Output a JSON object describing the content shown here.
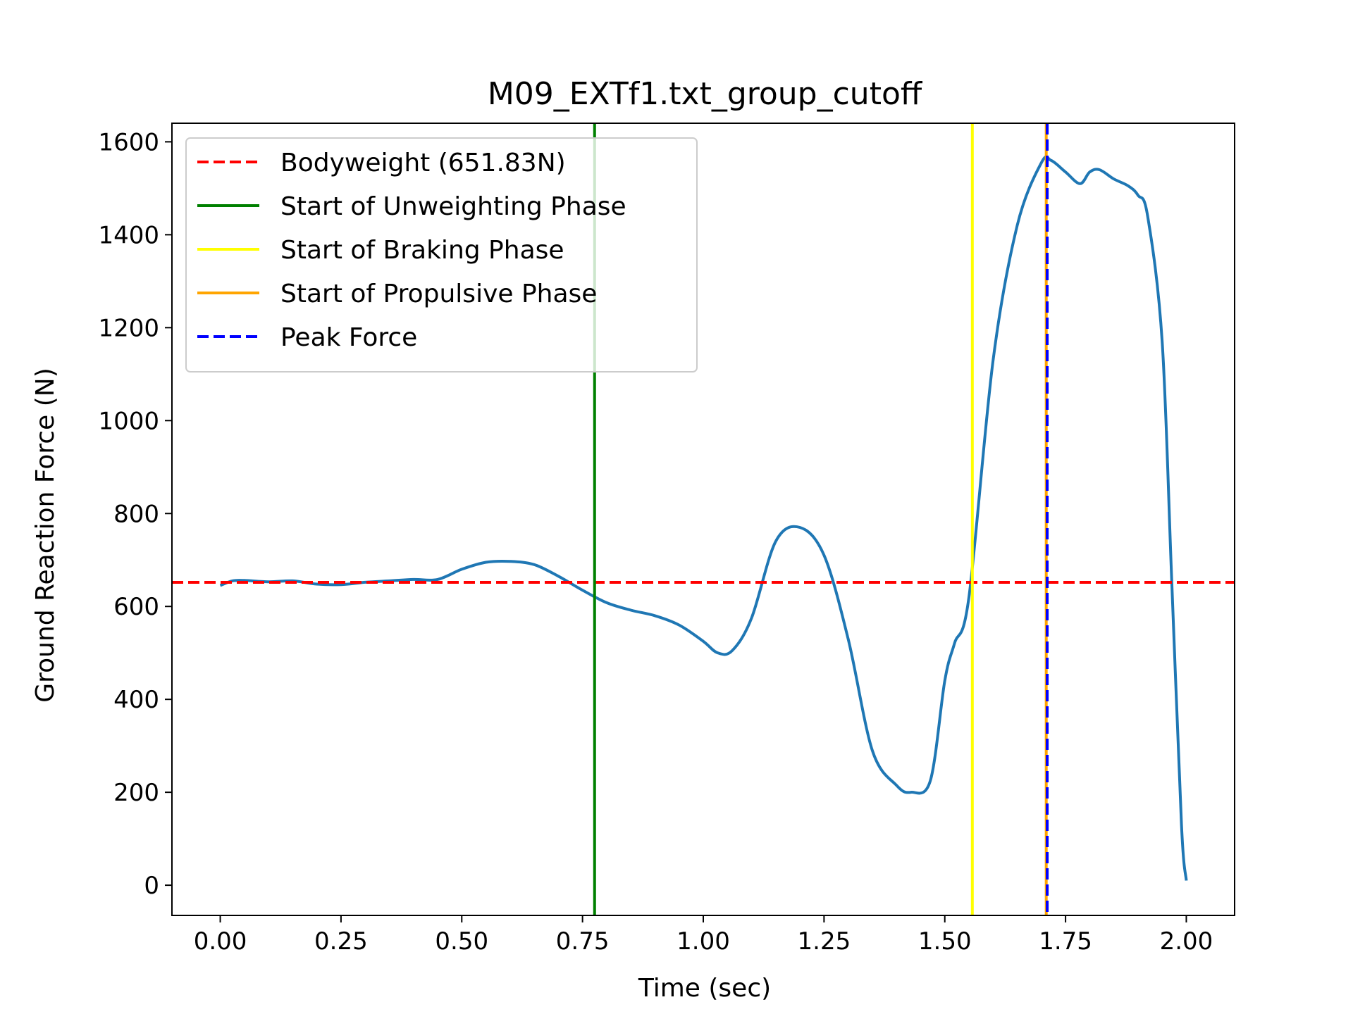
{
  "chart_data": {
    "type": "line",
    "title": "M09_EXTf1.txt_group_cutoff",
    "xlabel": "Time (sec)",
    "ylabel": "Ground Reaction Force (N)",
    "xlim": [
      -0.1,
      2.1
    ],
    "ylim": [
      -65,
      1640
    ],
    "xticks": [
      0.0,
      0.25,
      0.5,
      0.75,
      1.0,
      1.25,
      1.5,
      1.75,
      2.0
    ],
    "xtick_labels": [
      "0.00",
      "0.25",
      "0.50",
      "0.75",
      "1.00",
      "1.25",
      "1.50",
      "1.75",
      "2.00"
    ],
    "yticks": [
      0,
      200,
      400,
      600,
      800,
      1000,
      1200,
      1400,
      1600
    ],
    "ytick_labels": [
      "0",
      "200",
      "400",
      "600",
      "800",
      "1000",
      "1200",
      "1400",
      "1600"
    ],
    "grid": false,
    "legend_position": "top-left",
    "legend": [
      {
        "label": "Bodyweight (651.83N)",
        "color": "#ff0000",
        "style": "dashed"
      },
      {
        "label": "Start of Unweighting Phase",
        "color": "#008000",
        "style": "solid"
      },
      {
        "label": "Start of Braking Phase",
        "color": "#ffff00",
        "style": "solid"
      },
      {
        "label": "Start of Propulsive Phase",
        "color": "#ffa500",
        "style": "solid"
      },
      {
        "label": "Peak Force",
        "color": "#0000ff",
        "style": "dashed"
      }
    ],
    "bodyweight": 651.83,
    "phase_markers": {
      "unweighting_start": 0.775,
      "braking_start": 1.557,
      "propulsive_start": 1.71,
      "peak_force": 1.712
    },
    "series": [
      {
        "color": "#1f77b4",
        "x": [
          0.0,
          0.025,
          0.05,
          0.1,
          0.15,
          0.2,
          0.25,
          0.3,
          0.35,
          0.4,
          0.45,
          0.5,
          0.55,
          0.6,
          0.65,
          0.7,
          0.75,
          0.8,
          0.85,
          0.9,
          0.95,
          1.0,
          1.03,
          1.06,
          1.1,
          1.15,
          1.2,
          1.25,
          1.3,
          1.35,
          1.4,
          1.43,
          1.47,
          1.5,
          1.52,
          1.55,
          1.6,
          1.65,
          1.7,
          1.72,
          1.75,
          1.78,
          1.8,
          1.82,
          1.85,
          1.88,
          1.9,
          1.92,
          1.95,
          1.97,
          1.99,
          2.0
        ],
        "values": [
          645,
          655,
          656,
          653,
          655,
          648,
          647,
          652,
          655,
          658,
          658,
          680,
          695,
          697,
          690,
          665,
          635,
          608,
          592,
          580,
          560,
          525,
          500,
          505,
          575,
          740,
          770,
          710,
          530,
          290,
          215,
          200,
          225,
          440,
          520,
          620,
          1130,
          1420,
          1555,
          1560,
          1535,
          1510,
          1535,
          1540,
          1520,
          1505,
          1485,
          1440,
          1170,
          650,
          130,
          10
        ]
      }
    ]
  }
}
